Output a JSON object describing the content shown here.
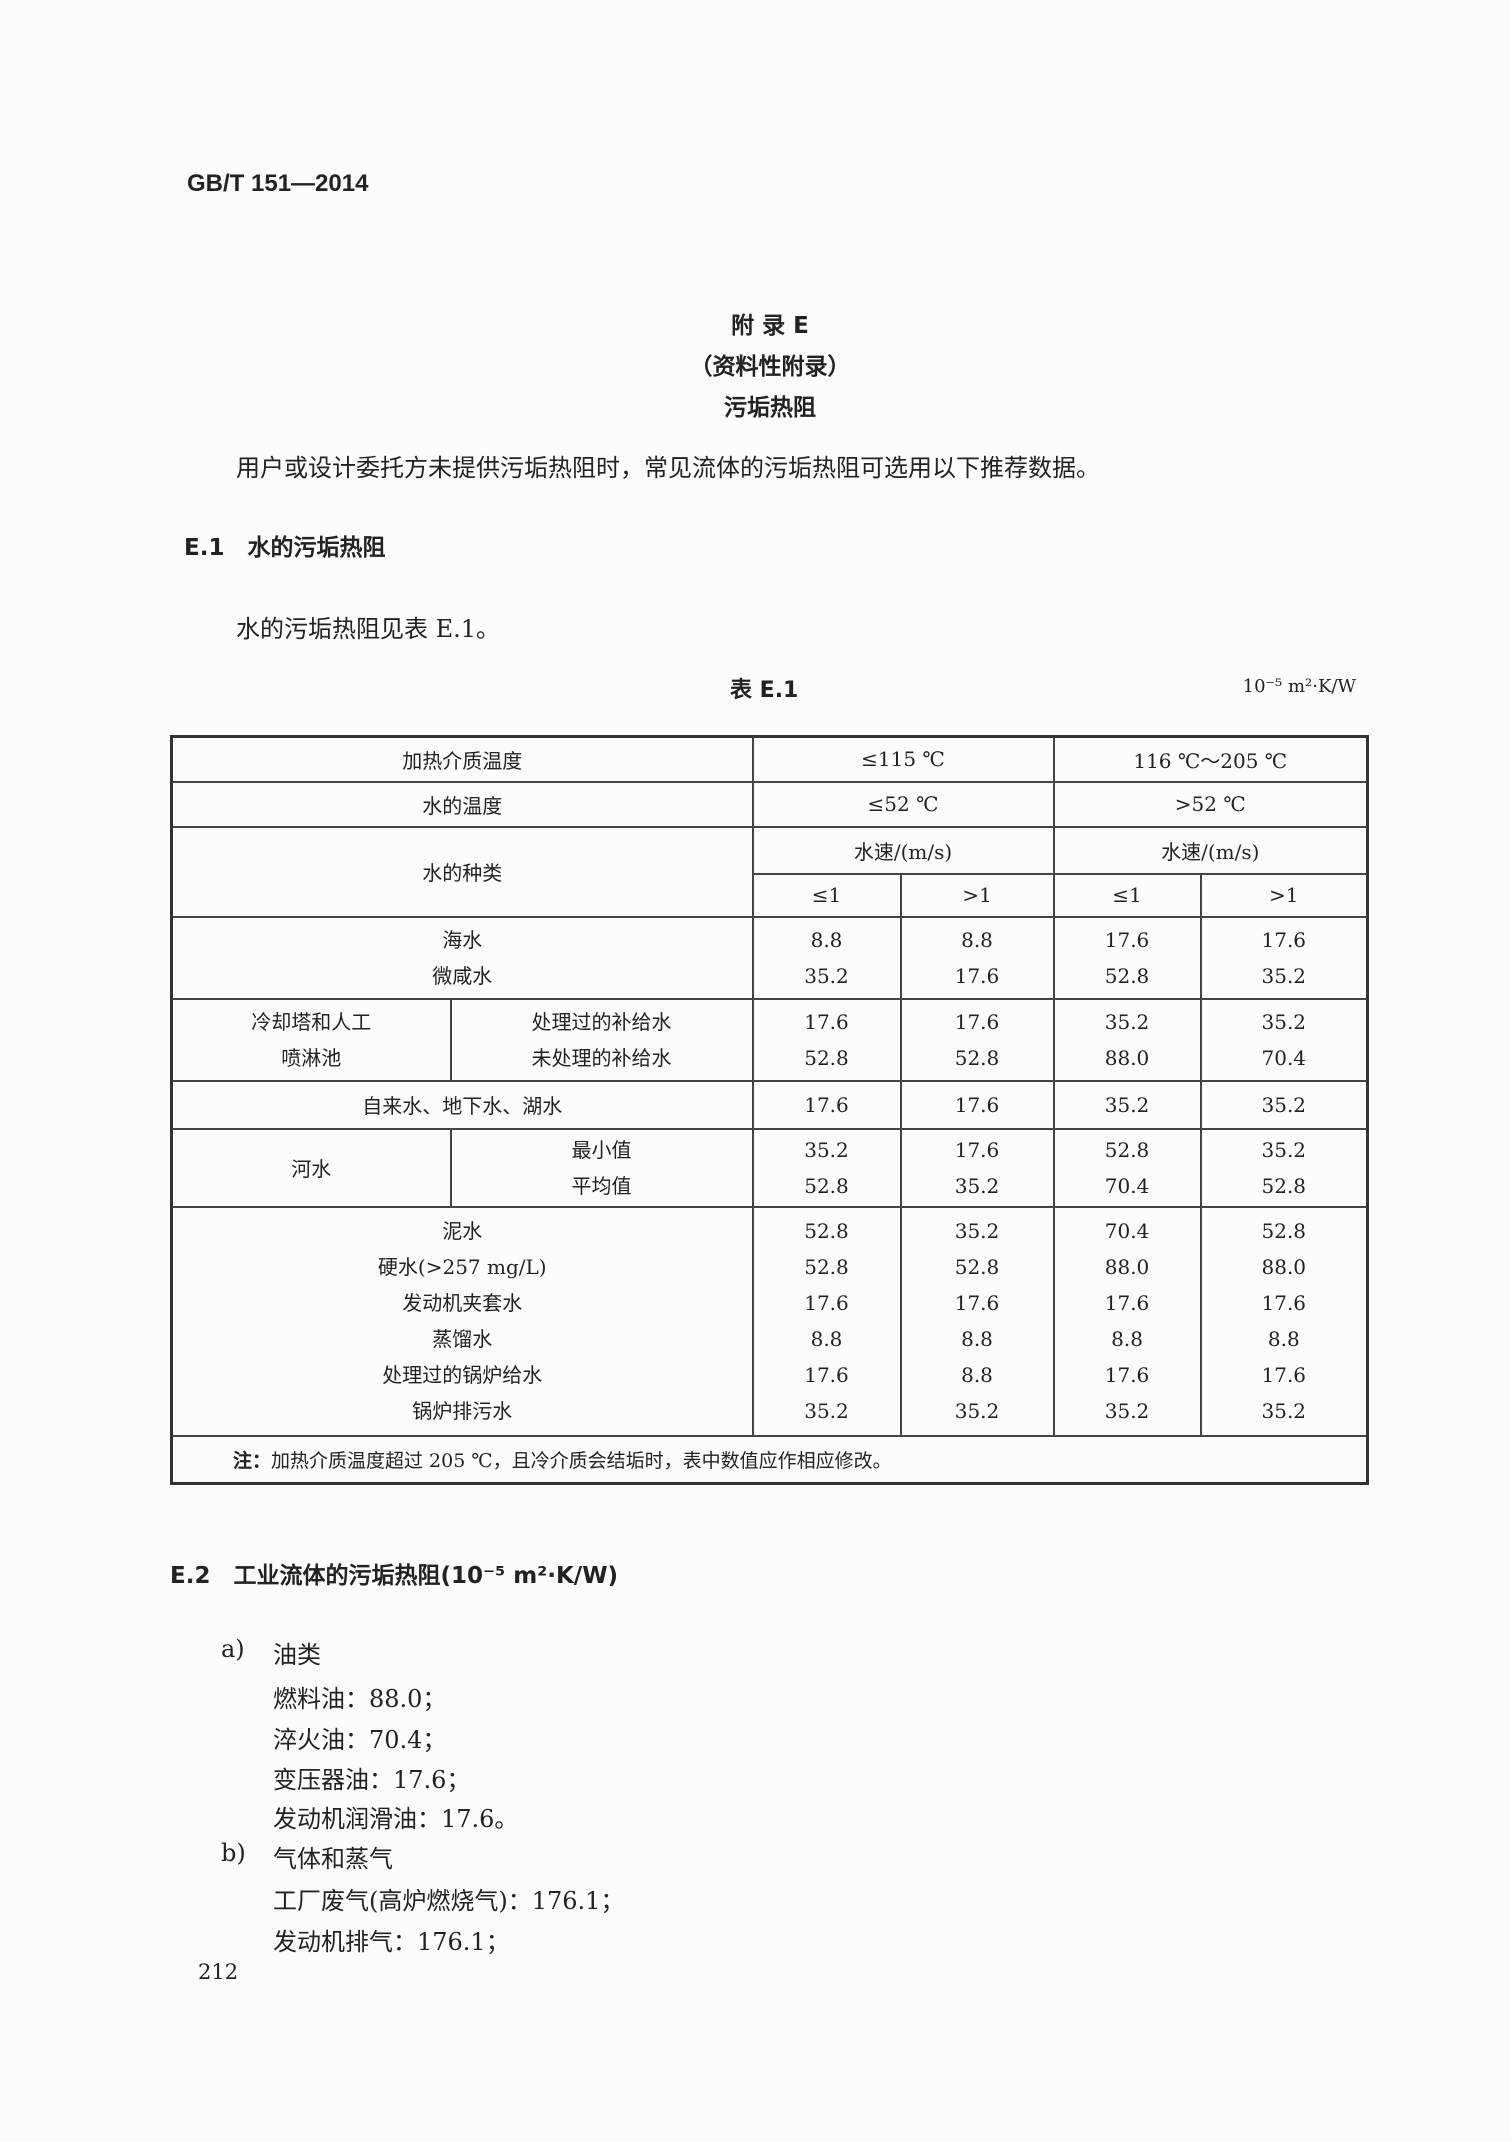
{
  "header": {
    "standard": "GB/T 151—2014"
  },
  "appendix": {
    "title": "附 录 E",
    "subtitle": "（资料性附录）",
    "name": "污垢热阻"
  },
  "intro": "用户或设计委托方未提供污垢热阻时，常见流体的污垢热阻可选用以下推荐数据。",
  "e1": {
    "heading": "E.1　水的污垢热阻",
    "text": "水的污垢热阻见表 E.1。"
  },
  "table": {
    "caption": "表 E.1",
    "unit": "10⁻⁵ m²·K/W",
    "heating_label": "加热介质温度",
    "heating_1": "≤115 ℃",
    "heating_2": "116 ℃～205 ℃",
    "water_temp_label": "水的温度",
    "water_temp_1": "≤52 ℃",
    "water_temp_2": ">52 ℃",
    "type_label": "水的种类",
    "speed_1": "水速/(m/s)",
    "speed_2": "水速/(m/s)",
    "sub": [
      "≤1",
      ">1",
      "≤1",
      ">1"
    ],
    "g1": {
      "names": [
        "海水",
        "微咸水"
      ],
      "values": [
        [
          "8.8",
          "8.8",
          "17.6",
          "17.6"
        ],
        [
          "35.2",
          "17.6",
          "52.8",
          "35.2"
        ]
      ]
    },
    "g2": {
      "group": [
        "冷却塔和人工",
        "喷淋池"
      ],
      "names": [
        "处理过的补给水",
        "未处理的补给水"
      ],
      "values": [
        [
          "17.6",
          "17.6",
          "35.2",
          "35.2"
        ],
        [
          "52.8",
          "52.8",
          "88.0",
          "70.4"
        ]
      ]
    },
    "g3": {
      "names": [
        "自来水、地下水、湖水"
      ],
      "values": [
        [
          "17.6",
          "17.6",
          "35.2",
          "35.2"
        ]
      ]
    },
    "g4": {
      "group": "河水",
      "names": [
        "最小值",
        "平均值"
      ],
      "values": [
        [
          "35.2",
          "17.6",
          "52.8",
          "35.2"
        ],
        [
          "52.8",
          "35.2",
          "70.4",
          "52.8"
        ]
      ]
    },
    "g5": {
      "names": [
        "泥水",
        "硬水(>257 mg/L)",
        "发动机夹套水",
        "蒸馏水",
        "处理过的锅炉给水",
        "锅炉排污水"
      ],
      "values": [
        [
          "52.8",
          "35.2",
          "70.4",
          "52.8"
        ],
        [
          "52.8",
          "52.8",
          "88.0",
          "88.0"
        ],
        [
          "17.6",
          "17.6",
          "17.6",
          "17.6"
        ],
        [
          "8.8",
          "8.8",
          "8.8",
          "8.8"
        ],
        [
          "17.6",
          "8.8",
          "17.6",
          "17.6"
        ],
        [
          "35.2",
          "35.2",
          "35.2",
          "35.2"
        ]
      ]
    },
    "note_label": "注：",
    "note": "加热介质温度超过 205 ℃，且冷介质会结垢时，表中数值应作相应修改。"
  },
  "e2": {
    "heading": "E.2　工业流体的污垢热阻(10⁻⁵ m²·K/W)",
    "a_label": "a)",
    "a_title": "油类",
    "a_items": [
      "燃料油：88.0；",
      "淬火油：70.4；",
      "变压器油：17.6；",
      "发动机润滑油：17.6。"
    ],
    "b_label": "b)",
    "b_title": "气体和蒸气",
    "b_items": [
      "工厂废气(高炉燃烧气)：176.1；",
      "发动机排气：176.1；"
    ]
  },
  "page_number": "212"
}
